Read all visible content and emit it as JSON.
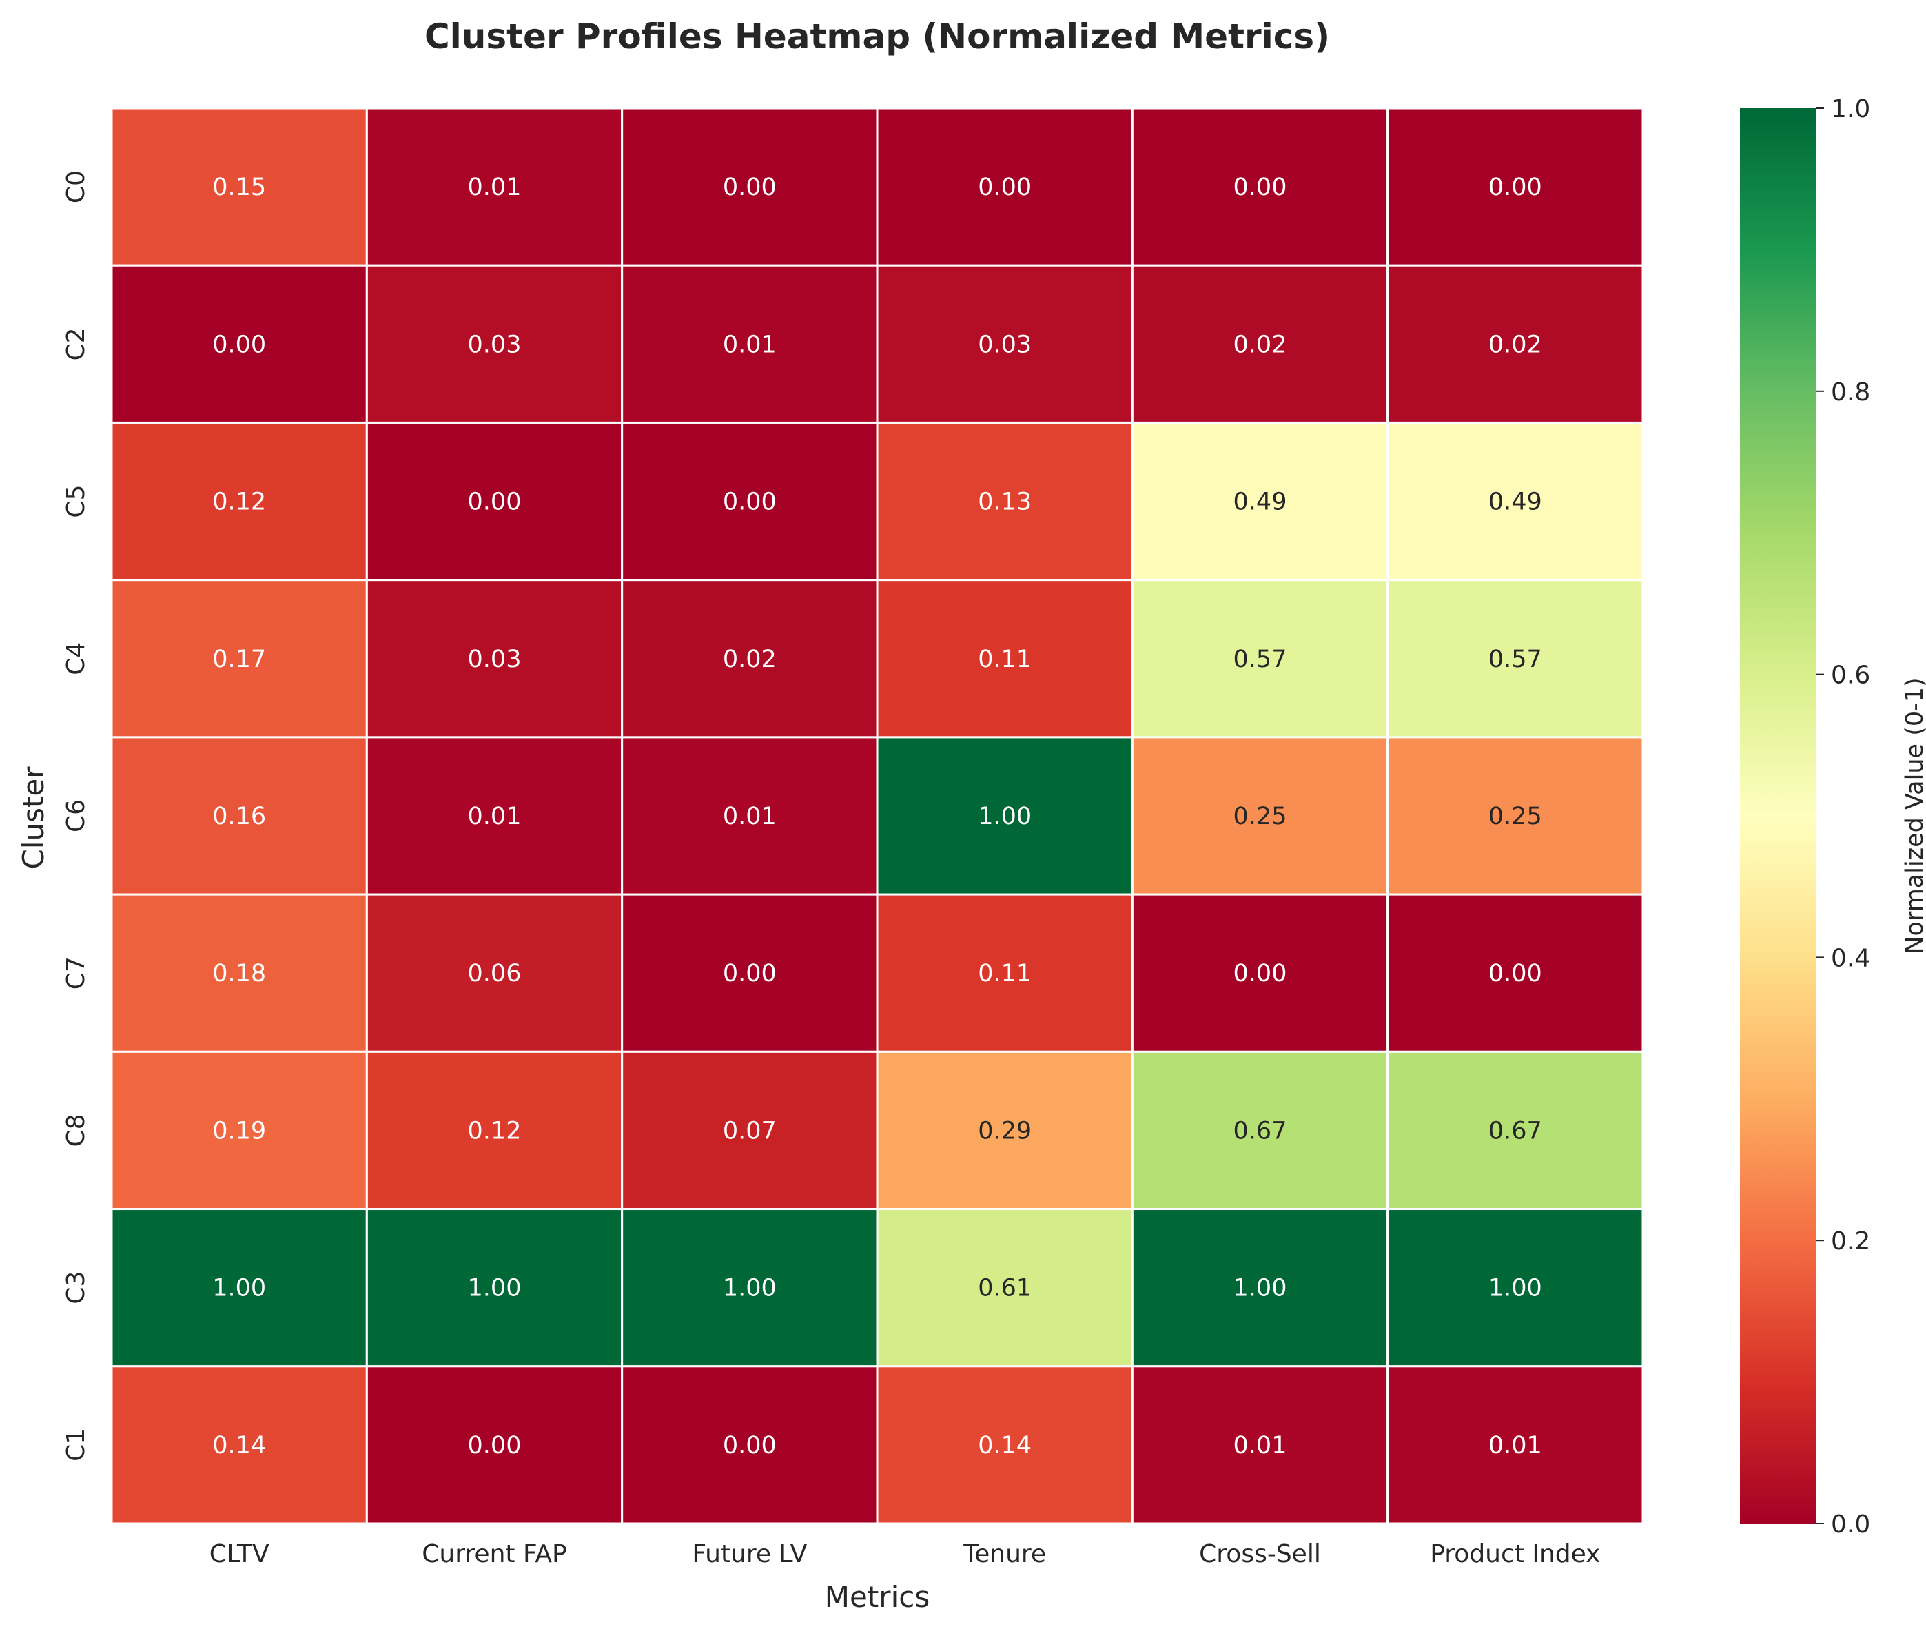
{
  "chart_data": {
    "type": "heatmap",
    "title": "Cluster Profiles Heatmap (Normalized Metrics)",
    "xlabel": "Metrics",
    "ylabel": "Cluster",
    "columns": [
      "CLTV",
      "Current FAP",
      "Future LV",
      "Tenure",
      "Cross-Sell",
      "Product Index"
    ],
    "rows": [
      "C0",
      "C2",
      "C5",
      "C4",
      "C6",
      "C7",
      "C8",
      "C3",
      "C1"
    ],
    "values": [
      [
        0.15,
        0.01,
        0.0,
        0.0,
        0.0,
        0.0
      ],
      [
        0.0,
        0.03,
        0.01,
        0.03,
        0.02,
        0.02
      ],
      [
        0.12,
        0.0,
        0.0,
        0.13,
        0.49,
        0.49
      ],
      [
        0.17,
        0.03,
        0.02,
        0.11,
        0.57,
        0.57
      ],
      [
        0.16,
        0.01,
        0.01,
        1.0,
        0.25,
        0.25
      ],
      [
        0.18,
        0.06,
        0.0,
        0.11,
        0.0,
        0.0
      ],
      [
        0.19,
        0.12,
        0.07,
        0.29,
        0.67,
        0.67
      ],
      [
        1.0,
        1.0,
        1.0,
        0.61,
        1.0,
        1.0
      ],
      [
        0.14,
        0.0,
        0.0,
        0.14,
        0.01,
        0.01
      ]
    ],
    "value_format": "0.00",
    "colormap": "RdYlGn",
    "colorbar": {
      "label": "Normalized Value (0-1)",
      "range": [
        0,
        1
      ],
      "ticks": [
        "0.0",
        "0.2",
        "0.4",
        "0.6",
        "0.8",
        "1.0"
      ]
    },
    "grid": false
  }
}
